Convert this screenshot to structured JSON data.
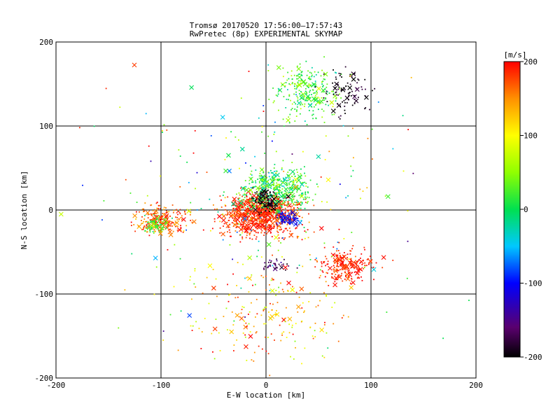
{
  "chart_data": [
    {
      "type": "scatter",
      "title": "Tromsø 20170520 17:56:00–17:57:43",
      "subtitle": "RwPretec (8p) EXPERIMENTAL SKYMAP",
      "xlabel": "E-W location [km]",
      "ylabel": "N-S location [km]",
      "xlim": [
        -200,
        200
      ],
      "ylim": [
        -200,
        200
      ],
      "xticks": [
        "-200",
        "-100",
        "0",
        "100",
        "200"
      ],
      "yticks": [
        "-200",
        "-100",
        "0",
        "100",
        "200"
      ],
      "grid_x": [
        -100,
        0,
        100
      ],
      "grid_y": [
        -100,
        0,
        100
      ],
      "marker_types": [
        "dot",
        "x"
      ],
      "clusters": [
        {
          "center": [
            -5,
            -5
          ],
          "spread": [
            25,
            18
          ],
          "count": 900,
          "v_mean": 185,
          "v_spread": 25
        },
        {
          "center": [
            10,
            25
          ],
          "spread": [
            22,
            18
          ],
          "count": 450,
          "v_mean": 15,
          "v_spread": 40
        },
        {
          "center": [
            0,
            10
          ],
          "spread": [
            10,
            10
          ],
          "count": 110,
          "v_mean": -195,
          "v_spread": 10
        },
        {
          "center": [
            20,
            -10
          ],
          "spread": [
            8,
            6
          ],
          "count": 90,
          "v_mean": -110,
          "v_spread": 30
        },
        {
          "center": [
            -100,
            -12
          ],
          "spread": [
            18,
            12
          ],
          "count": 220,
          "v_mean": 170,
          "v_spread": 35
        },
        {
          "center": [
            -105,
            -18
          ],
          "spread": [
            8,
            6
          ],
          "count": 70,
          "v_mean": 20,
          "v_spread": 30
        },
        {
          "center": [
            75,
            -65
          ],
          "spread": [
            20,
            14
          ],
          "count": 220,
          "v_mean": 190,
          "v_spread": 20
        },
        {
          "center": [
            40,
            140
          ],
          "spread": [
            22,
            22
          ],
          "count": 260,
          "v_mean": 25,
          "v_spread": 40
        },
        {
          "center": [
            75,
            140
          ],
          "spread": [
            18,
            20
          ],
          "count": 90,
          "v_mean": -190,
          "v_spread": 15
        },
        {
          "center": [
            10,
            -65
          ],
          "spread": [
            10,
            4
          ],
          "count": 35,
          "v_mean": -170,
          "v_spread": 25
        },
        {
          "center": [
            0,
            -120
          ],
          "spread": [
            55,
            40
          ],
          "count": 180,
          "v_mean": 130,
          "v_spread": 60
        },
        {
          "center": [
            0,
            0
          ],
          "spread": [
            110,
            110
          ],
          "count": 260,
          "v_mean": 60,
          "v_spread": 140
        }
      ],
      "x_marker_fraction": 0.12,
      "colorbar": {
        "unit_label": "[m/s]",
        "range": [
          -200,
          200
        ],
        "ticks": [
          "200",
          "100",
          "0",
          "-100",
          "-200"
        ],
        "tick_values": [
          200,
          100,
          0,
          -100,
          -200
        ],
        "colors": {
          "-200": "#000000",
          "-160": "#5a006e",
          "-100": "#0000ff",
          "-50": "#00c8ff",
          "0": "#00e050",
          "50": "#90ff00",
          "100": "#ffff00",
          "150": "#ff9000",
          "200": "#ff0000"
        }
      }
    }
  ]
}
